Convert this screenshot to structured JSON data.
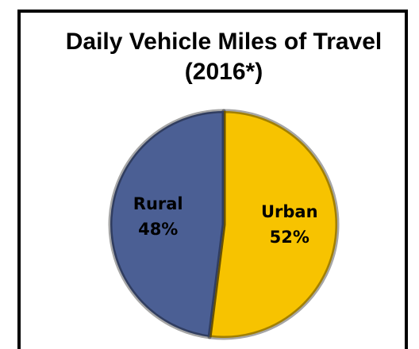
{
  "chart_data": {
    "type": "pie",
    "title": "Daily Vehicle Miles of Travel (2016*)",
    "categories": [
      "Urban",
      "Rural"
    ],
    "values": [
      52,
      48
    ],
    "value_labels": [
      "52%",
      "48%"
    ],
    "colors": [
      "#f7c300",
      "#4b5f94"
    ]
  }
}
